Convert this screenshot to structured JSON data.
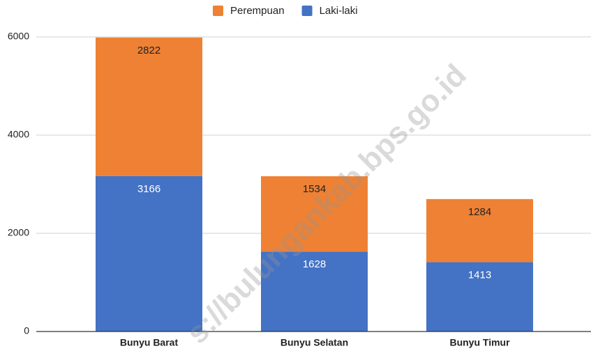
{
  "chart_data": {
    "type": "stacked_bar",
    "categories": [
      "Bunyu Barat",
      "Bunyu Selatan",
      "Bunyu Timur"
    ],
    "series": [
      {
        "name": "Perempuan",
        "color": "#ee8134",
        "values": [
          2822,
          1534,
          1284
        ]
      },
      {
        "name": "Laki-laki",
        "color": "#4472c4",
        "values": [
          3166,
          1628,
          1413
        ]
      }
    ],
    "ylim": [
      0,
      6000
    ],
    "yticks": [
      0,
      2000,
      4000,
      6000
    ],
    "grid": true,
    "legend": "top",
    "watermark": "s://bulungankab.bps.go.id"
  }
}
